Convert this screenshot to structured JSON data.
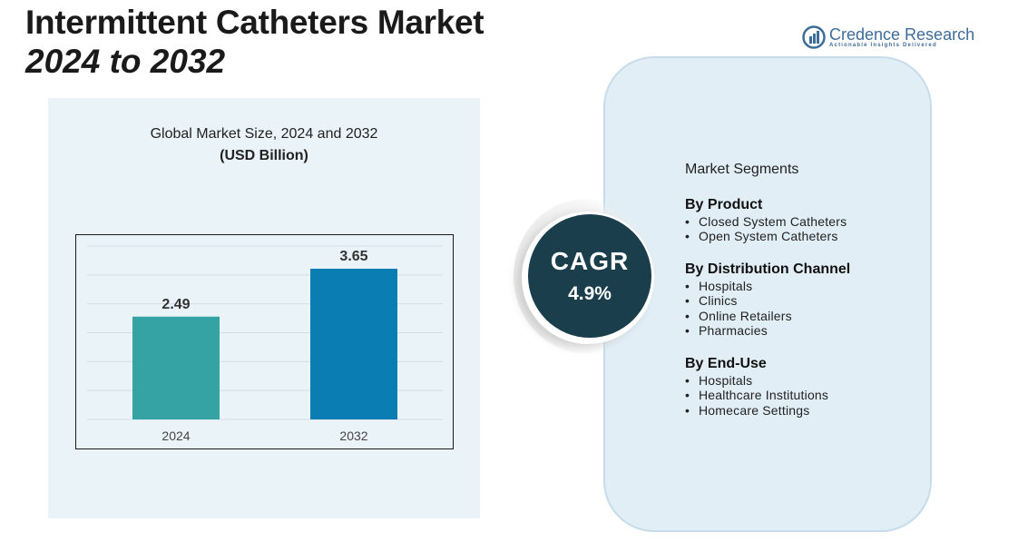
{
  "header": {
    "title_line1": "Intermittent Catheters Market",
    "title_line2": "2024 to 2032"
  },
  "logo": {
    "name": "Credence Research",
    "tagline": "Actionable Insights Delivered",
    "icon": "credence-logo-icon"
  },
  "chart_data": {
    "type": "bar",
    "title": "Global Market Size, 2024 and 2032",
    "unit": "(USD Billion)",
    "categories": [
      "2024",
      "2032"
    ],
    "values": [
      2.49,
      3.65
    ],
    "value_labels": [
      "2.49",
      "3.65"
    ],
    "colors": [
      "#35a3a3",
      "#0a7db3"
    ],
    "ylim": [
      0,
      4.2
    ],
    "grid": true,
    "xlabel": "",
    "ylabel": ""
  },
  "cagr": {
    "label": "CAGR",
    "value": "4.9%"
  },
  "segments": {
    "heading": "Market Segments",
    "groups": [
      {
        "title": "By Product",
        "items": [
          "Closed System Catheters",
          "Open System Catheters"
        ]
      },
      {
        "title": "By Distribution Channel",
        "items": [
          "Hospitals",
          "Clinics",
          "Online Retailers",
          "Pharmacies"
        ]
      },
      {
        "title": "By End-Use",
        "items": [
          "Hospitals",
          "Healthcare Institutions",
          "Homecare Settings"
        ]
      }
    ]
  }
}
